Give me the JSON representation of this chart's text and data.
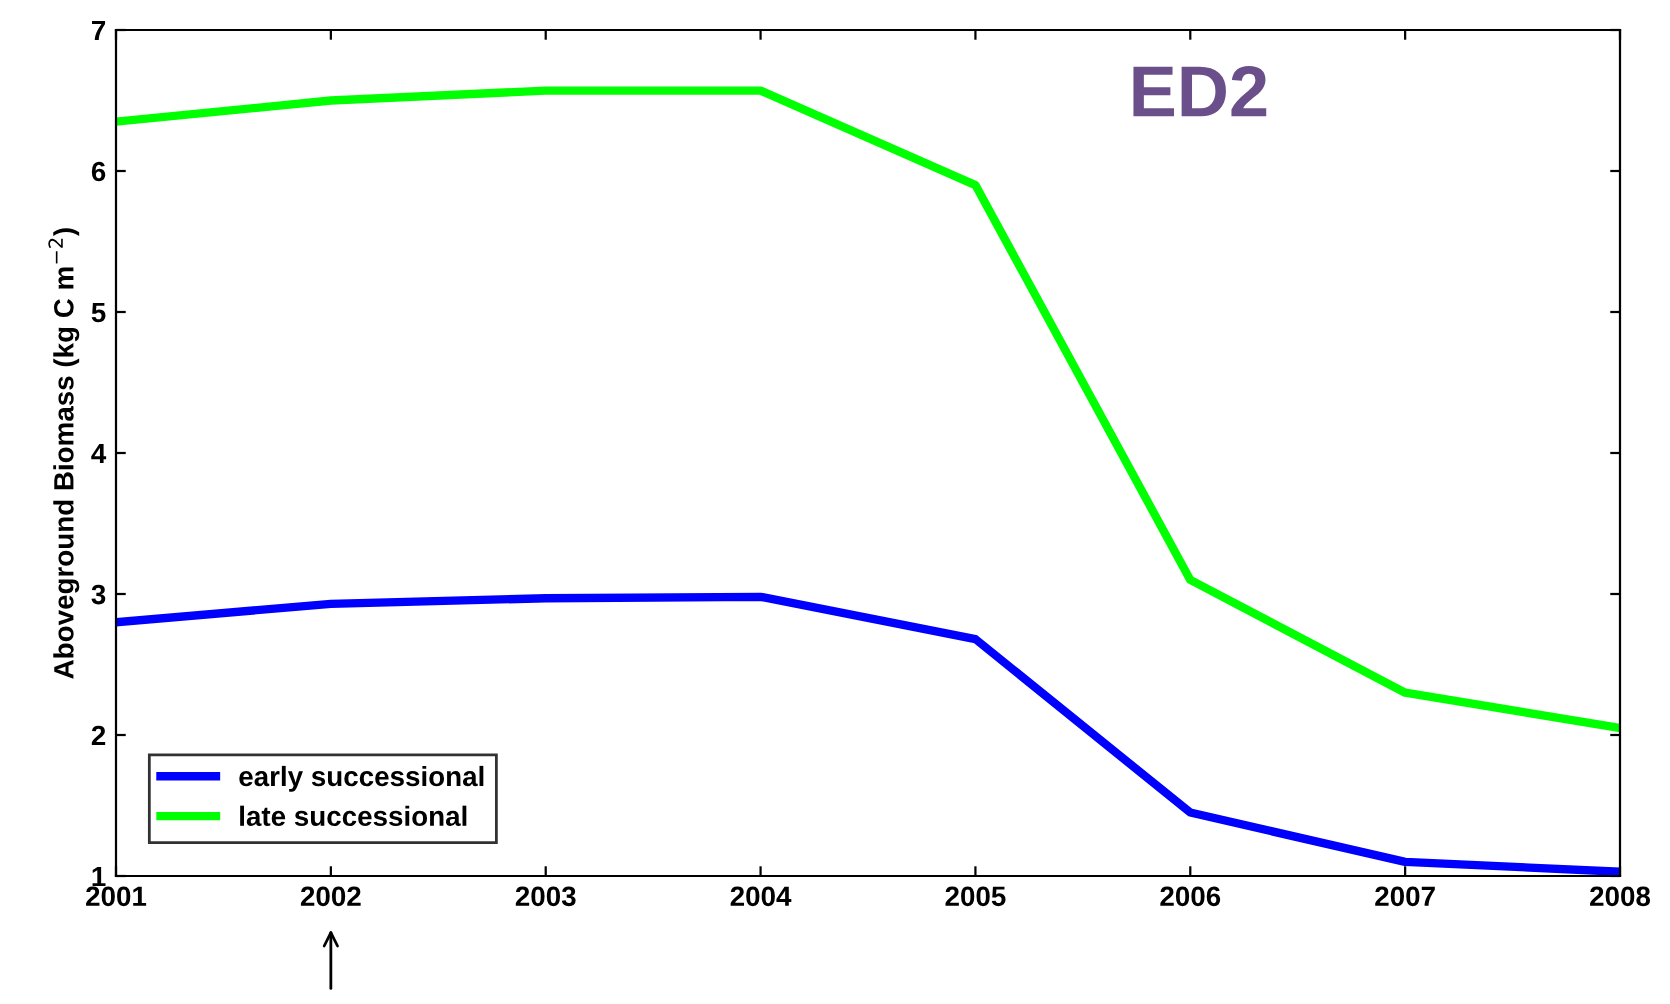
{
  "chart_data": {
    "type": "line",
    "ylabel": "Aboveground Biomass (kg C m$^{−2}$)",
    "annotations": [
      "ED2"
    ],
    "x": [
      2001,
      2002,
      2003,
      2004,
      2005,
      2006,
      2007,
      2008
    ],
    "series": [
      {
        "name": "early successional",
        "color": "#0000ff",
        "values": [
          2.8,
          2.93,
          2.97,
          2.98,
          2.68,
          1.45,
          1.1,
          1.03
        ]
      },
      {
        "name": "late successional",
        "color": "#00ff00",
        "values": [
          6.35,
          6.5,
          6.57,
          6.57,
          5.9,
          3.1,
          2.3,
          2.05
        ]
      }
    ],
    "xlim": [
      2001,
      2008
    ],
    "xticks": [
      2001,
      2002,
      2003,
      2004,
      2005,
      2006,
      2007,
      2008
    ],
    "ylim": [
      1,
      7
    ],
    "yticks": [
      1,
      2,
      3,
      4,
      5,
      6,
      7
    ],
    "grid": false,
    "legend": "bottom left",
    "marker": "none",
    "line_style": "solid"
  }
}
